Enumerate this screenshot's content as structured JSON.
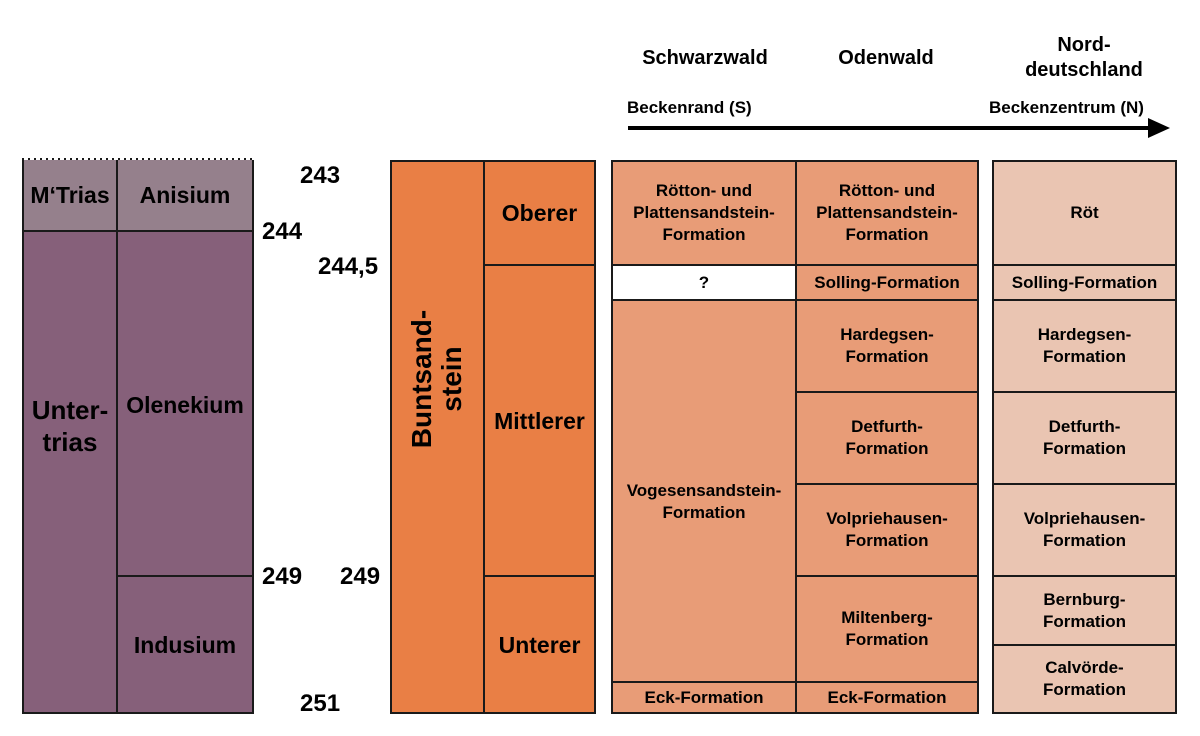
{
  "colors": {
    "trias_light": "#95808c",
    "trias_dark": "#86607a",
    "buntsandstein": "#e97f45",
    "schwarzwald": "#e89c77",
    "odenwald": "#e89c77",
    "norddeutschland": "#eac5b2",
    "unknown": "#ffffff",
    "border": "#1a1a1a"
  },
  "headers": {
    "schwarzwald": "Schwarzwald",
    "odenwald": "Odenwald",
    "norddeutschland": "Nord-\ndeutschland",
    "beckenrand": "Beckenrand (S)",
    "beckenzentrum": "Beckenzentrum (N)"
  },
  "ages": {
    "a243": "243",
    "a244": "244",
    "a244_5": "244,5",
    "a249_left": "249",
    "a249_right": "249",
    "a251": "251"
  },
  "chronostratigraphy": {
    "series": [
      "M‘Trias",
      "Unter-\ntrias"
    ],
    "stages": [
      "Anisium",
      "Olenekium",
      "Indusium"
    ]
  },
  "lithostratigraphy": {
    "group": "Buntsand-\nstein",
    "subgroups": [
      "Oberer",
      "Mittlerer",
      "Unterer"
    ]
  },
  "schwarzwald": [
    "Rötton- und\nPlattensandstein-\nFormation",
    "?",
    "Vogesensandstein-\nFormation",
    "Eck-Formation"
  ],
  "odenwald": [
    "Rötton- und\nPlattensandstein-\nFormation",
    "Solling-Formation",
    "Hardegsen-\nFormation",
    "Detfurth-\nFormation",
    "Volpriehausen-\nFormation",
    "Miltenberg-\nFormation",
    "Eck-Formation"
  ],
  "norddeutschland": [
    "Röt",
    "Solling-Formation",
    "Hardegsen-\nFormation",
    "Detfurth-\nFormation",
    "Volpriehausen-\nFormation",
    "Bernburg-\nFormation",
    "Calvörde-\nFormation"
  ]
}
